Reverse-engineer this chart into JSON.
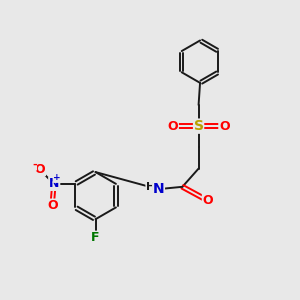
{
  "bg_color": "#e8e8e8",
  "bond_color": "#1a1a1a",
  "S_color": "#b8a000",
  "O_color": "#ff0000",
  "N_color": "#0000cc",
  "F_color": "#007700",
  "figsize": [
    3.0,
    3.0
  ],
  "dpi": 100,
  "xlim": [
    0,
    10
  ],
  "ylim": [
    0,
    10
  ]
}
